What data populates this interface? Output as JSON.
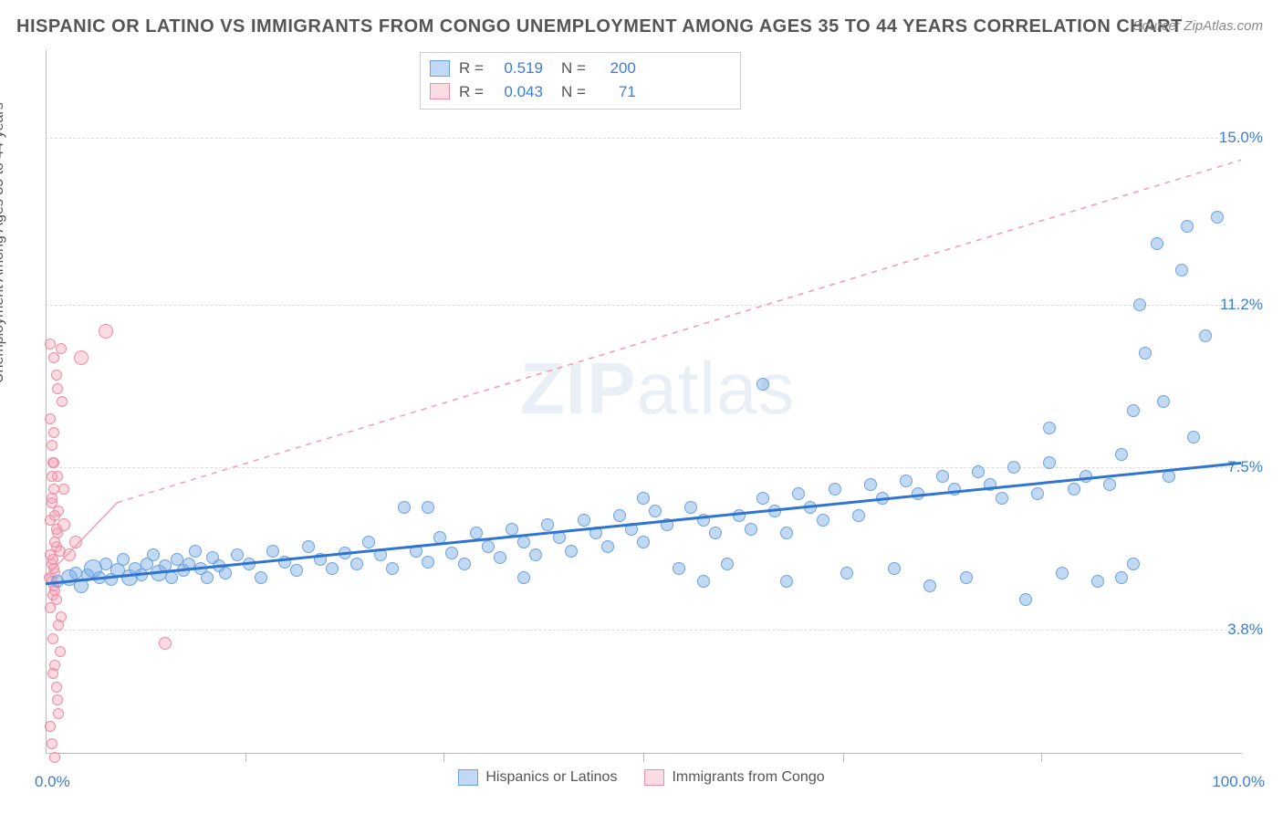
{
  "title": "HISPANIC OR LATINO VS IMMIGRANTS FROM CONGO UNEMPLOYMENT AMONG AGES 35 TO 44 YEARS CORRELATION CHART",
  "source": "Source: ZipAtlas.com",
  "ylabel": "Unemployment Among Ages 35 to 44 years",
  "watermark_bold": "ZIP",
  "watermark_thin": "atlas",
  "chart": {
    "type": "scatter",
    "xlim": [
      0,
      100
    ],
    "ylim_display": [
      1.0,
      17.0
    ],
    "y_ticks": [
      3.8,
      7.5,
      11.2,
      15.0
    ],
    "y_tick_labels": [
      "3.8%",
      "7.5%",
      "11.2%",
      "15.0%"
    ],
    "x_tick_labels": {
      "left": "0.0%",
      "right": "100.0%"
    },
    "x_minor_ticks": [
      16.7,
      33.3,
      50.0,
      66.7,
      83.3
    ],
    "background_color": "#ffffff",
    "grid_color": "#dddddd",
    "series_blue": {
      "label": "Hispanics or Latinos",
      "fill": "rgba(120,170,230,0.45)",
      "stroke": "#6da2e0",
      "trend_color": "#2e74d0",
      "trend_width": 3,
      "R": "0.519",
      "N": "200",
      "trend": {
        "x1": 0,
        "y1": 4.85,
        "x2": 100,
        "y2": 7.6
      }
    },
    "series_pink": {
      "label": "Immigrants from Congo",
      "fill": "rgba(248,160,180,0.38)",
      "stroke": "#f08aa5",
      "trend_color": "#f59ab2",
      "trend_width": 1.5,
      "R": "0.043",
      "N": "71",
      "trend_solid": {
        "x1": 0,
        "y1": 5.0,
        "x2": 6,
        "y2": 6.7
      },
      "trend_dashed": {
        "x1": 6,
        "y1": 6.7,
        "x2": 100,
        "y2": 14.5
      }
    }
  },
  "legend_top": {
    "R_label": "R =",
    "N_label": "N =",
    "value_color": "#3b7dd8"
  },
  "blue_points": [
    [
      1,
      4.9,
      14
    ],
    [
      2,
      5.0,
      18
    ],
    [
      2.5,
      5.1,
      14
    ],
    [
      3,
      4.8,
      16
    ],
    [
      3.5,
      5.05,
      14
    ],
    [
      4,
      5.2,
      20
    ],
    [
      4.5,
      5.0,
      14
    ],
    [
      5,
      5.3,
      14
    ],
    [
      5.5,
      4.95,
      14
    ],
    [
      6,
      5.15,
      16
    ],
    [
      6.5,
      5.4,
      14
    ],
    [
      7,
      5.0,
      18
    ],
    [
      7.5,
      5.2,
      14
    ],
    [
      8,
      5.05,
      14
    ],
    [
      8.5,
      5.3,
      14
    ],
    [
      9,
      5.5,
      14
    ],
    [
      9.5,
      5.1,
      18
    ],
    [
      10,
      5.25,
      14
    ],
    [
      10.5,
      5.0,
      14
    ],
    [
      11,
      5.4,
      14
    ],
    [
      11.5,
      5.15,
      14
    ],
    [
      12,
      5.3,
      14
    ],
    [
      12.5,
      5.6,
      14
    ],
    [
      13,
      5.2,
      14
    ],
    [
      13.5,
      5.0,
      14
    ],
    [
      14,
      5.45,
      14
    ],
    [
      14.5,
      5.25,
      14
    ],
    [
      15,
      5.1,
      14
    ],
    [
      16,
      5.5,
      14
    ],
    [
      17,
      5.3,
      14
    ],
    [
      18,
      5.0,
      14
    ],
    [
      19,
      5.6,
      14
    ],
    [
      20,
      5.35,
      14
    ],
    [
      21,
      5.15,
      14
    ],
    [
      22,
      5.7,
      14
    ],
    [
      23,
      5.4,
      14
    ],
    [
      24,
      5.2,
      14
    ],
    [
      25,
      5.55,
      14
    ],
    [
      26,
      5.3,
      14
    ],
    [
      27,
      5.8,
      14
    ],
    [
      28,
      5.5,
      14
    ],
    [
      29,
      5.2,
      14
    ],
    [
      30,
      6.6,
      14
    ],
    [
      31,
      5.6,
      14
    ],
    [
      32,
      5.35,
      14
    ],
    [
      33,
      5.9,
      14
    ],
    [
      34,
      5.55,
      14
    ],
    [
      35,
      5.3,
      14
    ],
    [
      36,
      6.0,
      14
    ],
    [
      37,
      5.7,
      14
    ],
    [
      38,
      5.45,
      14
    ],
    [
      39,
      6.1,
      14
    ],
    [
      40,
      5.8,
      14
    ],
    [
      41,
      5.5,
      14
    ],
    [
      42,
      6.2,
      14
    ],
    [
      43,
      5.9,
      14
    ],
    [
      44,
      5.6,
      14
    ],
    [
      45,
      6.3,
      14
    ],
    [
      46,
      6.0,
      14
    ],
    [
      47,
      5.7,
      14
    ],
    [
      48,
      6.4,
      14
    ],
    [
      49,
      6.1,
      14
    ],
    [
      50,
      5.8,
      14
    ],
    [
      51,
      6.5,
      14
    ],
    [
      52,
      6.2,
      14
    ],
    [
      53,
      5.2,
      14
    ],
    [
      54,
      6.6,
      14
    ],
    [
      55,
      6.3,
      14
    ],
    [
      56,
      6.0,
      14
    ],
    [
      57,
      5.3,
      14
    ],
    [
      58,
      6.4,
      14
    ],
    [
      59,
      6.1,
      14
    ],
    [
      60,
      6.8,
      14
    ],
    [
      61,
      6.5,
      14
    ],
    [
      62,
      4.9,
      14
    ],
    [
      63,
      6.9,
      14
    ],
    [
      64,
      6.6,
      14
    ],
    [
      65,
      6.3,
      14
    ],
    [
      66,
      7.0,
      14
    ],
    [
      67,
      5.1,
      14
    ],
    [
      68,
      6.4,
      14
    ],
    [
      69,
      7.1,
      14
    ],
    [
      70,
      6.8,
      14
    ],
    [
      71,
      5.2,
      14
    ],
    [
      72,
      7.2,
      14
    ],
    [
      73,
      6.9,
      14
    ],
    [
      74,
      4.8,
      14
    ],
    [
      75,
      7.3,
      14
    ],
    [
      76,
      7.0,
      14
    ],
    [
      77,
      5.0,
      14
    ],
    [
      78,
      7.4,
      14
    ],
    [
      79,
      7.1,
      14
    ],
    [
      80,
      6.8,
      14
    ],
    [
      81,
      7.5,
      14
    ],
    [
      82,
      4.5,
      14
    ],
    [
      83,
      6.9,
      14
    ],
    [
      84,
      7.6,
      14
    ],
    [
      85,
      5.1,
      14
    ],
    [
      86,
      7.0,
      14
    ],
    [
      87,
      7.3,
      14
    ],
    [
      88,
      4.9,
      14
    ],
    [
      89,
      7.1,
      14
    ],
    [
      90,
      7.8,
      14
    ],
    [
      91,
      8.8,
      14
    ],
    [
      91.5,
      11.2,
      14
    ],
    [
      92,
      10.1,
      14
    ],
    [
      93,
      12.6,
      14
    ],
    [
      93.5,
      9.0,
      14
    ],
    [
      94,
      7.3,
      14
    ],
    [
      95,
      12.0,
      14
    ],
    [
      95.5,
      13.0,
      14
    ],
    [
      96,
      8.2,
      14
    ],
    [
      97,
      10.5,
      14
    ],
    [
      98,
      13.2,
      14
    ],
    [
      32,
      6.6,
      14
    ],
    [
      40,
      5.0,
      14
    ],
    [
      50,
      6.8,
      14
    ],
    [
      55,
      4.9,
      14
    ],
    [
      60,
      9.4,
      14
    ],
    [
      62,
      6.0,
      14
    ],
    [
      84,
      8.4,
      14
    ],
    [
      90,
      5.0,
      14
    ],
    [
      91,
      5.3,
      14
    ]
  ],
  "pink_points": [
    [
      0.3,
      5.0,
      12
    ],
    [
      0.5,
      5.3,
      12
    ],
    [
      0.7,
      4.8,
      12
    ],
    [
      0.4,
      5.5,
      12
    ],
    [
      0.8,
      5.1,
      12
    ],
    [
      0.6,
      4.6,
      12
    ],
    [
      0.9,
      5.7,
      12
    ],
    [
      0.5,
      4.9,
      12
    ],
    [
      1.0,
      6.0,
      12
    ],
    [
      0.7,
      5.2,
      12
    ],
    [
      0.4,
      6.3,
      12
    ],
    [
      0.8,
      4.7,
      12
    ],
    [
      1.1,
      6.5,
      12
    ],
    [
      0.6,
      5.4,
      12
    ],
    [
      0.9,
      4.5,
      12
    ],
    [
      0.5,
      6.8,
      12
    ],
    [
      1.2,
      5.6,
      12
    ],
    [
      0.7,
      7.0,
      12
    ],
    [
      0.4,
      4.3,
      12
    ],
    [
      1.0,
      7.3,
      12
    ],
    [
      0.8,
      5.8,
      12
    ],
    [
      0.6,
      7.6,
      12
    ],
    [
      1.3,
      4.1,
      12
    ],
    [
      0.5,
      8.0,
      12
    ],
    [
      0.9,
      6.1,
      12
    ],
    [
      0.7,
      8.3,
      12
    ],
    [
      1.1,
      3.9,
      12
    ],
    [
      0.4,
      8.6,
      12
    ],
    [
      0.8,
      6.4,
      12
    ],
    [
      1.4,
      9.0,
      12
    ],
    [
      0.6,
      3.6,
      12
    ],
    [
      1.0,
      9.3,
      12
    ],
    [
      0.5,
      6.7,
      12
    ],
    [
      0.9,
      9.6,
      12
    ],
    [
      1.2,
      3.3,
      12
    ],
    [
      0.7,
      10.0,
      12
    ],
    [
      1.5,
      7.0,
      12
    ],
    [
      0.4,
      10.3,
      12
    ],
    [
      0.8,
      3.0,
      12
    ],
    [
      5.0,
      10.6,
      16
    ],
    [
      0.6,
      2.8,
      12
    ],
    [
      1.3,
      10.2,
      12
    ],
    [
      0.5,
      7.3,
      12
    ],
    [
      0.9,
      2.5,
      12
    ],
    [
      1.0,
      2.2,
      12
    ],
    [
      0.7,
      7.6,
      12
    ],
    [
      1.1,
      1.9,
      12
    ],
    [
      0.4,
      1.6,
      12
    ],
    [
      2.0,
      5.5,
      14
    ],
    [
      1.5,
      6.2,
      14
    ],
    [
      2.5,
      5.8,
      14
    ],
    [
      3.0,
      10.0,
      16
    ],
    [
      10.0,
      3.5,
      14
    ],
    [
      0.5,
      1.2,
      12
    ],
    [
      0.8,
      0.9,
      12
    ]
  ]
}
